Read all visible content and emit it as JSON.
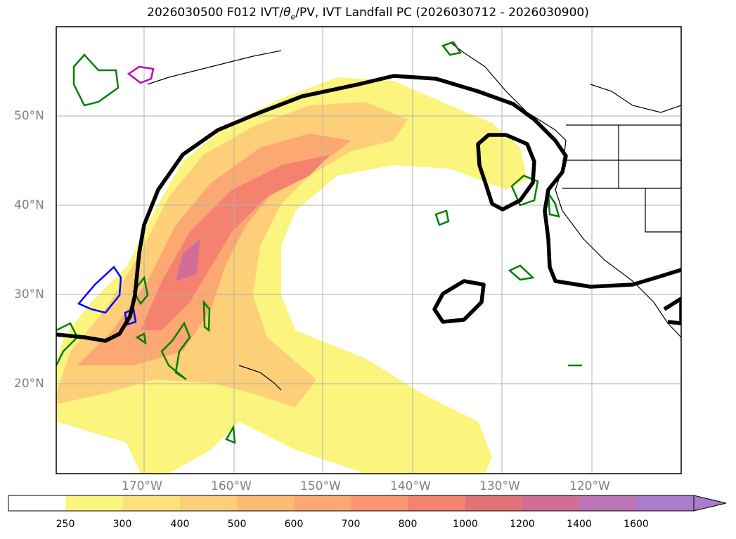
{
  "title": {
    "prefix": "2026030500 F012 IVT/",
    "theta": "θ",
    "theta_sub": "e",
    "suffix": "/PV, IVT Landfall PC (2026030712 - 2026030900)"
  },
  "map": {
    "lon_labels": [
      "170°W",
      "160°W",
      "150°W",
      "140°W",
      "130°W",
      "120°W"
    ],
    "lat_labels": [
      "50°N",
      "40°N",
      "30°N",
      "20°N"
    ],
    "grid": true
  },
  "colorbar": {
    "ticks": [
      "250",
      "300",
      "400",
      "500",
      "600",
      "700",
      "800",
      "1000",
      "1200",
      "1400",
      "1600"
    ],
    "colors": [
      "#ffffff",
      "#fbf47d",
      "#fde27a",
      "#fdcf78",
      "#fdbb76",
      "#fca873",
      "#fb9570",
      "#f5826f",
      "#e37379",
      "#cf6f96",
      "#bc75b6",
      "#a97dcb"
    ],
    "extend": "max"
  },
  "contour_colors": {
    "ivt_fill_light": "#fbf47d",
    "ivt_fill_mid": "#fdcf78",
    "ivt_fill_high": "#f5826f",
    "ivt_fill_max": "#cf6f96",
    "landfall_pc": "#000000",
    "theta_e": "#008000",
    "pv_blue": "#0000ff",
    "pv_magenta": "#c000c0"
  }
}
